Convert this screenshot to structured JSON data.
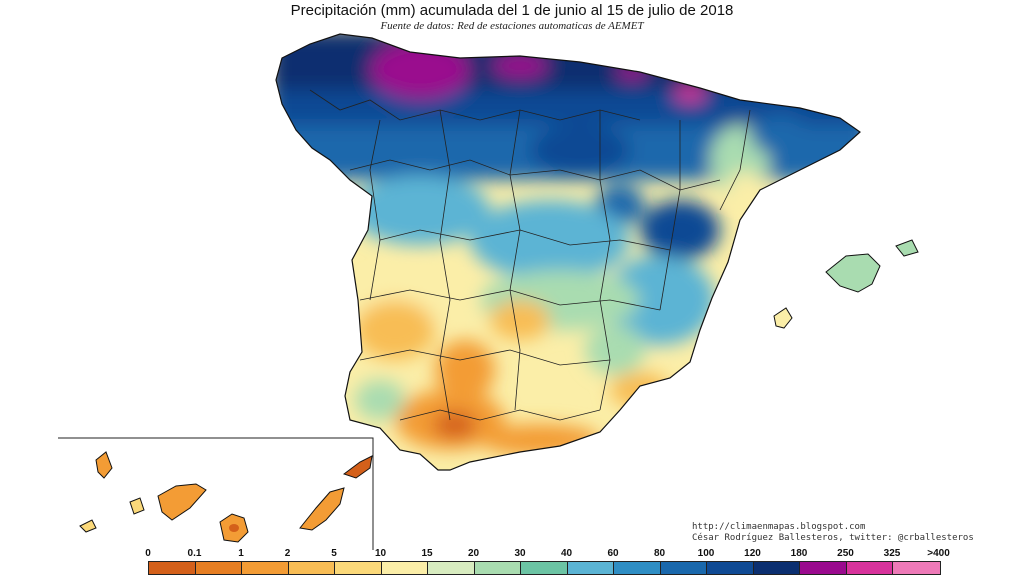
{
  "title": "Precipitación (mm) acumulada del 1 de junio al 15 de julio  de 2018",
  "subtitle": "Fuente de datos: Red de estaciones automaticas de AEMET",
  "credits": {
    "blog": "http://climaenmapas.blogspot.com",
    "author": "César Rodríguez Ballesteros, twitter: @crballesteros"
  },
  "legend": {
    "labels": [
      "0",
      "0.1",
      "1",
      "2",
      "5",
      "10",
      "15",
      "20",
      "30",
      "40",
      "60",
      "80",
      "100",
      "120",
      "180",
      "250",
      "325",
      ">400"
    ],
    "colors": [
      "#d4601a",
      "#e67e22",
      "#f39c35",
      "#f8bd55",
      "#fbd97a",
      "#fbeea8",
      "#d8ecc0",
      "#a9dcb0",
      "#6cc4a4",
      "#5bb4d4",
      "#2f8ec4",
      "#1a68ac",
      "#0f4a94",
      "#0b2f70",
      "#9a0a8e",
      "#d8339c",
      "#ee7ab8"
    ]
  }
}
